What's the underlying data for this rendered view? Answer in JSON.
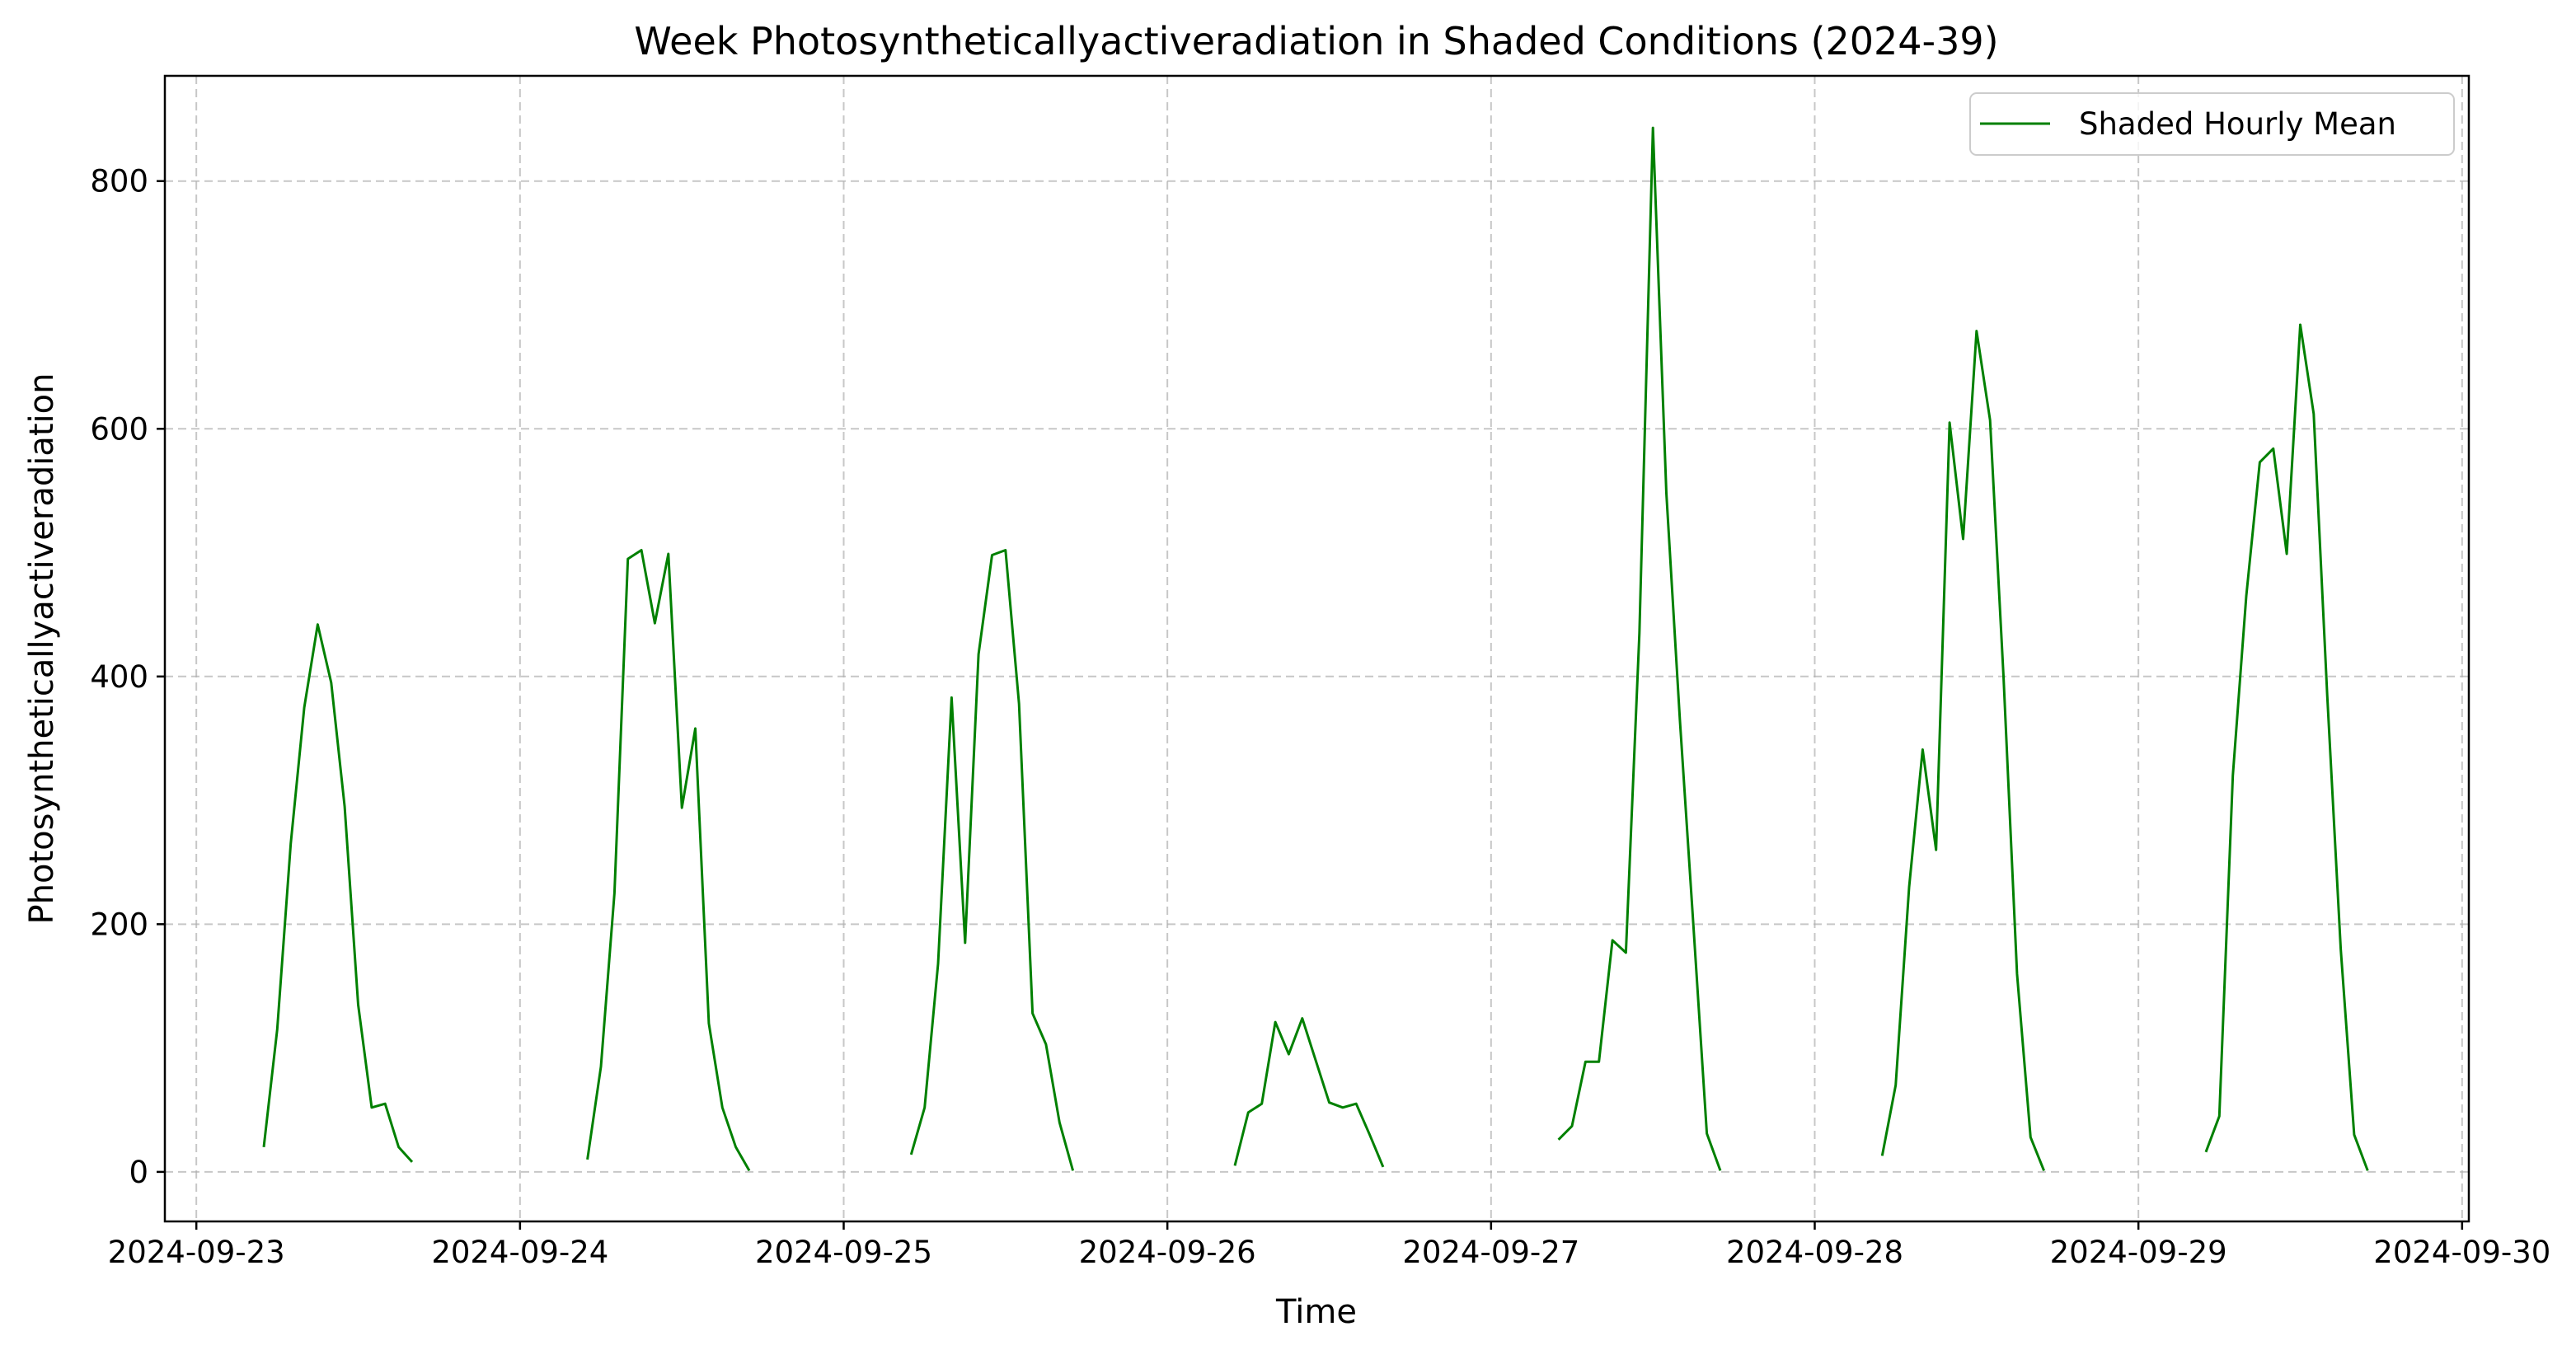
{
  "chart_data": {
    "type": "line",
    "title": "Week Photosyntheticallyactiveradiation in Shaded Conditions (2024-39)",
    "xlabel": "Time",
    "ylabel": "Photosyntheticallyactiveradiation",
    "x_ticks": [
      "2024-09-23",
      "2024-09-24",
      "2024-09-25",
      "2024-09-26",
      "2024-09-27",
      "2024-09-28",
      "2024-09-29",
      "2024-09-30"
    ],
    "y_ticks": [
      0,
      200,
      400,
      600,
      800
    ],
    "xlim": [
      "2024-09-22 21:40",
      "2024-09-30 00:30"
    ],
    "ylim": [
      -40,
      885
    ],
    "grid": true,
    "legend_position": "top-right",
    "series": [
      {
        "name": "Shaded Hourly Mean",
        "color": "#008000",
        "segments": [
          [
            [
              "2024-09-23 05:00",
              20
            ],
            [
              "2024-09-23 06:00",
              115
            ],
            [
              "2024-09-23 07:00",
              265
            ],
            [
              "2024-09-23 08:00",
              375
            ],
            [
              "2024-09-23 09:00",
              442
            ],
            [
              "2024-09-23 10:00",
              395
            ],
            [
              "2024-09-23 11:00",
              295
            ],
            [
              "2024-09-23 12:00",
              135
            ],
            [
              "2024-09-23 13:00",
              52
            ],
            [
              "2024-09-23 14:00",
              55
            ],
            [
              "2024-09-23 15:00",
              20
            ],
            [
              "2024-09-23 16:00",
              8
            ]
          ],
          [
            [
              "2024-09-24 05:00",
              10
            ],
            [
              "2024-09-24 06:00",
              85
            ],
            [
              "2024-09-24 07:00",
              225
            ],
            [
              "2024-09-24 08:00",
              495
            ],
            [
              "2024-09-24 09:00",
              502
            ],
            [
              "2024-09-24 10:00",
              443
            ],
            [
              "2024-09-24 11:00",
              499
            ],
            [
              "2024-09-24 12:00",
              294
            ],
            [
              "2024-09-24 13:00",
              358
            ],
            [
              "2024-09-24 14:00",
              120
            ],
            [
              "2024-09-24 15:00",
              52
            ],
            [
              "2024-09-24 16:00",
              20
            ],
            [
              "2024-09-24 17:00",
              1
            ]
          ],
          [
            [
              "2024-09-25 05:00",
              14
            ],
            [
              "2024-09-25 06:00",
              52
            ],
            [
              "2024-09-25 07:00",
              168
            ],
            [
              "2024-09-25 08:00",
              383
            ],
            [
              "2024-09-25 09:00",
              185
            ],
            [
              "2024-09-25 10:00",
              418
            ],
            [
              "2024-09-25 11:00",
              498
            ],
            [
              "2024-09-25 12:00",
              502
            ],
            [
              "2024-09-25 13:00",
              378
            ],
            [
              "2024-09-25 14:00",
              128
            ],
            [
              "2024-09-25 15:00",
              103
            ],
            [
              "2024-09-25 16:00",
              40
            ],
            [
              "2024-09-25 17:00",
              1
            ]
          ],
          [
            [
              "2024-09-26 05:00",
              5
            ],
            [
              "2024-09-26 06:00",
              48
            ],
            [
              "2024-09-26 07:00",
              55
            ],
            [
              "2024-09-26 08:00",
              121
            ],
            [
              "2024-09-26 09:00",
              95
            ],
            [
              "2024-09-26 10:00",
              124
            ],
            [
              "2024-09-26 11:00",
              90
            ],
            [
              "2024-09-26 12:00",
              56
            ],
            [
              "2024-09-26 13:00",
              52
            ],
            [
              "2024-09-26 14:00",
              55
            ],
            [
              "2024-09-26 15:00",
              30
            ],
            [
              "2024-09-26 16:00",
              4
            ]
          ],
          [
            [
              "2024-09-27 05:00",
              26
            ],
            [
              "2024-09-27 06:00",
              37
            ],
            [
              "2024-09-27 07:00",
              89
            ],
            [
              "2024-09-27 08:00",
              89
            ],
            [
              "2024-09-27 09:00",
              187
            ],
            [
              "2024-09-27 10:00",
              177
            ],
            [
              "2024-09-27 11:00",
              435
            ],
            [
              "2024-09-27 12:00",
              843
            ],
            [
              "2024-09-27 13:00",
              548
            ],
            [
              "2024-09-27 14:00",
              365
            ],
            [
              "2024-09-27 15:00",
              200
            ],
            [
              "2024-09-27 16:00",
              31
            ],
            [
              "2024-09-27 17:00",
              1
            ]
          ],
          [
            [
              "2024-09-28 05:00",
              13
            ],
            [
              "2024-09-28 06:00",
              70
            ],
            [
              "2024-09-28 07:00",
              230
            ],
            [
              "2024-09-28 08:00",
              341
            ],
            [
              "2024-09-28 09:00",
              260
            ],
            [
              "2024-09-28 10:00",
              605
            ],
            [
              "2024-09-28 11:00",
              511
            ],
            [
              "2024-09-28 12:00",
              679
            ],
            [
              "2024-09-28 13:00",
              607
            ],
            [
              "2024-09-28 14:00",
              400
            ],
            [
              "2024-09-28 15:00",
              160
            ],
            [
              "2024-09-28 16:00",
              28
            ],
            [
              "2024-09-28 17:00",
              1
            ]
          ],
          [
            [
              "2024-09-29 05:00",
              16
            ],
            [
              "2024-09-29 06:00",
              45
            ],
            [
              "2024-09-29 07:00",
              320
            ],
            [
              "2024-09-29 08:00",
              465
            ],
            [
              "2024-09-29 09:00",
              573
            ],
            [
              "2024-09-29 10:00",
              584
            ],
            [
              "2024-09-29 11:00",
              499
            ],
            [
              "2024-09-29 12:00",
              684
            ],
            [
              "2024-09-29 13:00",
              612
            ],
            [
              "2024-09-29 14:00",
              385
            ],
            [
              "2024-09-29 15:00",
              180
            ],
            [
              "2024-09-29 16:00",
              30
            ],
            [
              "2024-09-29 17:00",
              1
            ]
          ]
        ]
      }
    ]
  }
}
